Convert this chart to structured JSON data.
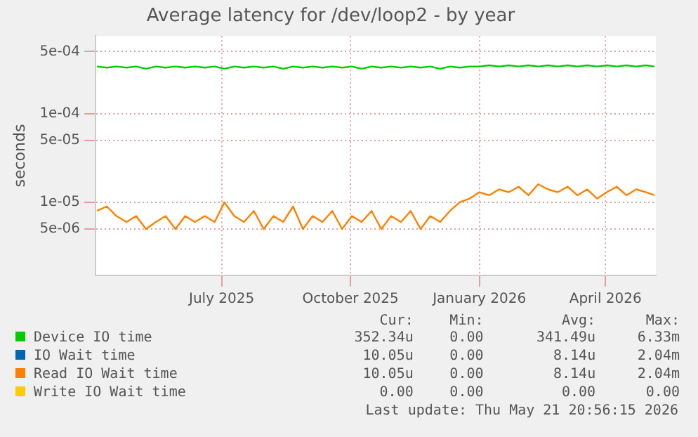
{
  "chart_data": {
    "type": "line",
    "title": "Average latency for /dev/loop2 - by year",
    "ylabel": "seconds",
    "x": [
      "2025-04-18",
      "2025-04-25",
      "2025-05-02",
      "2025-05-09",
      "2025-05-16",
      "2025-05-23",
      "2025-05-30",
      "2025-06-06",
      "2025-06-13",
      "2025-06-20",
      "2025-06-27",
      "2025-07-04",
      "2025-07-11",
      "2025-07-18",
      "2025-07-25",
      "2025-08-01",
      "2025-08-08",
      "2025-08-15",
      "2025-08-22",
      "2025-08-29",
      "2025-09-05",
      "2025-09-12",
      "2025-09-19",
      "2025-09-26",
      "2025-10-03",
      "2025-10-10",
      "2025-10-17",
      "2025-10-24",
      "2025-10-31",
      "2025-11-07",
      "2025-11-14",
      "2025-11-21",
      "2025-11-28",
      "2025-12-05",
      "2025-12-12",
      "2025-12-19",
      "2025-12-26",
      "2026-01-02",
      "2026-01-09",
      "2026-01-16",
      "2026-01-23",
      "2026-01-30",
      "2026-02-06",
      "2026-02-13",
      "2026-02-20",
      "2026-02-27",
      "2026-03-06",
      "2026-03-13",
      "2026-03-20",
      "2026-03-27",
      "2026-04-03",
      "2026-04-10",
      "2026-04-17",
      "2026-04-24",
      "2026-05-01",
      "2026-05-08",
      "2026-05-15",
      "2026-05-21"
    ],
    "series": [
      {
        "name": "Device IO time",
        "color": "#00cc00",
        "values": [
          0.00034,
          0.00033,
          0.00034,
          0.00033,
          0.00034,
          0.00032,
          0.00034,
          0.00033,
          0.00034,
          0.00033,
          0.00034,
          0.00033,
          0.00034,
          0.00032,
          0.00034,
          0.00033,
          0.00034,
          0.00033,
          0.00034,
          0.00032,
          0.00034,
          0.00033,
          0.00034,
          0.00033,
          0.00034,
          0.00033,
          0.00034,
          0.00032,
          0.00034,
          0.00033,
          0.00034,
          0.00033,
          0.00034,
          0.00033,
          0.00034,
          0.00032,
          0.00034,
          0.00033,
          0.00034,
          0.00034,
          0.00035,
          0.00034,
          0.00035,
          0.00034,
          0.00035,
          0.00034,
          0.00035,
          0.00034,
          0.00035,
          0.00034,
          0.00035,
          0.00034,
          0.00035,
          0.00034,
          0.00035,
          0.00034,
          0.00035,
          0.00034
        ]
      },
      {
        "name": "IO Wait time",
        "color": "#0066b3",
        "values": [
          null,
          null,
          null,
          null,
          null,
          null,
          null,
          null,
          null,
          null,
          null,
          null,
          null,
          null,
          null,
          null,
          null,
          null,
          null,
          null,
          null,
          null,
          null,
          null,
          null,
          null,
          null,
          null,
          null,
          null,
          null,
          null,
          null,
          null,
          null,
          null,
          null,
          null,
          null,
          null,
          null,
          null,
          null,
          null,
          null,
          null,
          null,
          null,
          null,
          null,
          null,
          null,
          null,
          null,
          null,
          null,
          null,
          null
        ]
      },
      {
        "name": "Read IO Wait time",
        "color": "#ff8000",
        "values": [
          8e-06,
          9e-06,
          7e-06,
          6e-06,
          7e-06,
          5e-06,
          6e-06,
          7e-06,
          5e-06,
          7e-06,
          6e-06,
          7e-06,
          6e-06,
          1e-05,
          7e-06,
          6e-06,
          8e-06,
          5e-06,
          7e-06,
          6e-06,
          9e-06,
          5e-06,
          7e-06,
          6e-06,
          8e-06,
          5e-06,
          7e-06,
          6e-06,
          8e-06,
          5e-06,
          7e-06,
          6e-06,
          8e-06,
          5e-06,
          7e-06,
          6e-06,
          8e-06,
          1e-05,
          1.1e-05,
          1.3e-05,
          1.2e-05,
          1.4e-05,
          1.3e-05,
          1.5e-05,
          1.2e-05,
          1.6e-05,
          1.4e-05,
          1.3e-05,
          1.5e-05,
          1.2e-05,
          1.4e-05,
          1.1e-05,
          1.3e-05,
          1.5e-05,
          1.2e-05,
          1.4e-05,
          1.3e-05,
          1.2e-05
        ]
      },
      {
        "name": "Write IO Wait time",
        "color": "#ffcc00",
        "values": [
          null,
          null,
          null,
          null,
          null,
          null,
          null,
          null,
          null,
          null,
          null,
          null,
          null,
          null,
          null,
          null,
          null,
          null,
          null,
          null,
          null,
          null,
          null,
          null,
          null,
          null,
          null,
          null,
          null,
          null,
          null,
          null,
          null,
          null,
          null,
          null,
          null,
          null,
          null,
          null,
          null,
          null,
          null,
          null,
          null,
          null,
          null,
          null,
          null,
          null,
          null,
          null,
          null,
          null,
          null,
          null,
          null,
          null
        ]
      }
    ],
    "log": "y",
    "ylim": [
      1.5e-06,
      0.00075
    ],
    "yticks": [
      {
        "value": 5e-06,
        "label": "5e-06"
      },
      {
        "value": 1e-05,
        "label": "1e-05"
      },
      {
        "value": 5e-05,
        "label": "5e-05"
      },
      {
        "value": 0.0001,
        "label": "1e-04"
      },
      {
        "value": 0.0005,
        "label": "5e-04"
      }
    ],
    "xlim": [
      "2025-04-17",
      "2026-05-22"
    ],
    "xticks": [
      {
        "value": "2025-07-16",
        "label": "July 2025"
      },
      {
        "value": "2025-10-16",
        "label": "October 2025"
      },
      {
        "value": "2026-01-16",
        "label": "January 2026"
      },
      {
        "value": "2026-04-16",
        "label": "April 2026"
      }
    ],
    "grid": true,
    "legend": "bottom",
    "marker": "none",
    "line_style": "solid",
    "annotations": [
      "Cur:",
      "Min:",
      "Avg:",
      "Max:",
      "352.34u",
      "0.00",
      "341.49u",
      "6.33m",
      "10.05u",
      "0.00",
      "8.14u",
      "2.04m",
      "10.05u",
      "0.00",
      "8.14u",
      "2.04m",
      "0.00",
      "0.00",
      "0.00",
      "0.00",
      "Last update: Thu May 21 20:56:15 2026"
    ]
  }
}
